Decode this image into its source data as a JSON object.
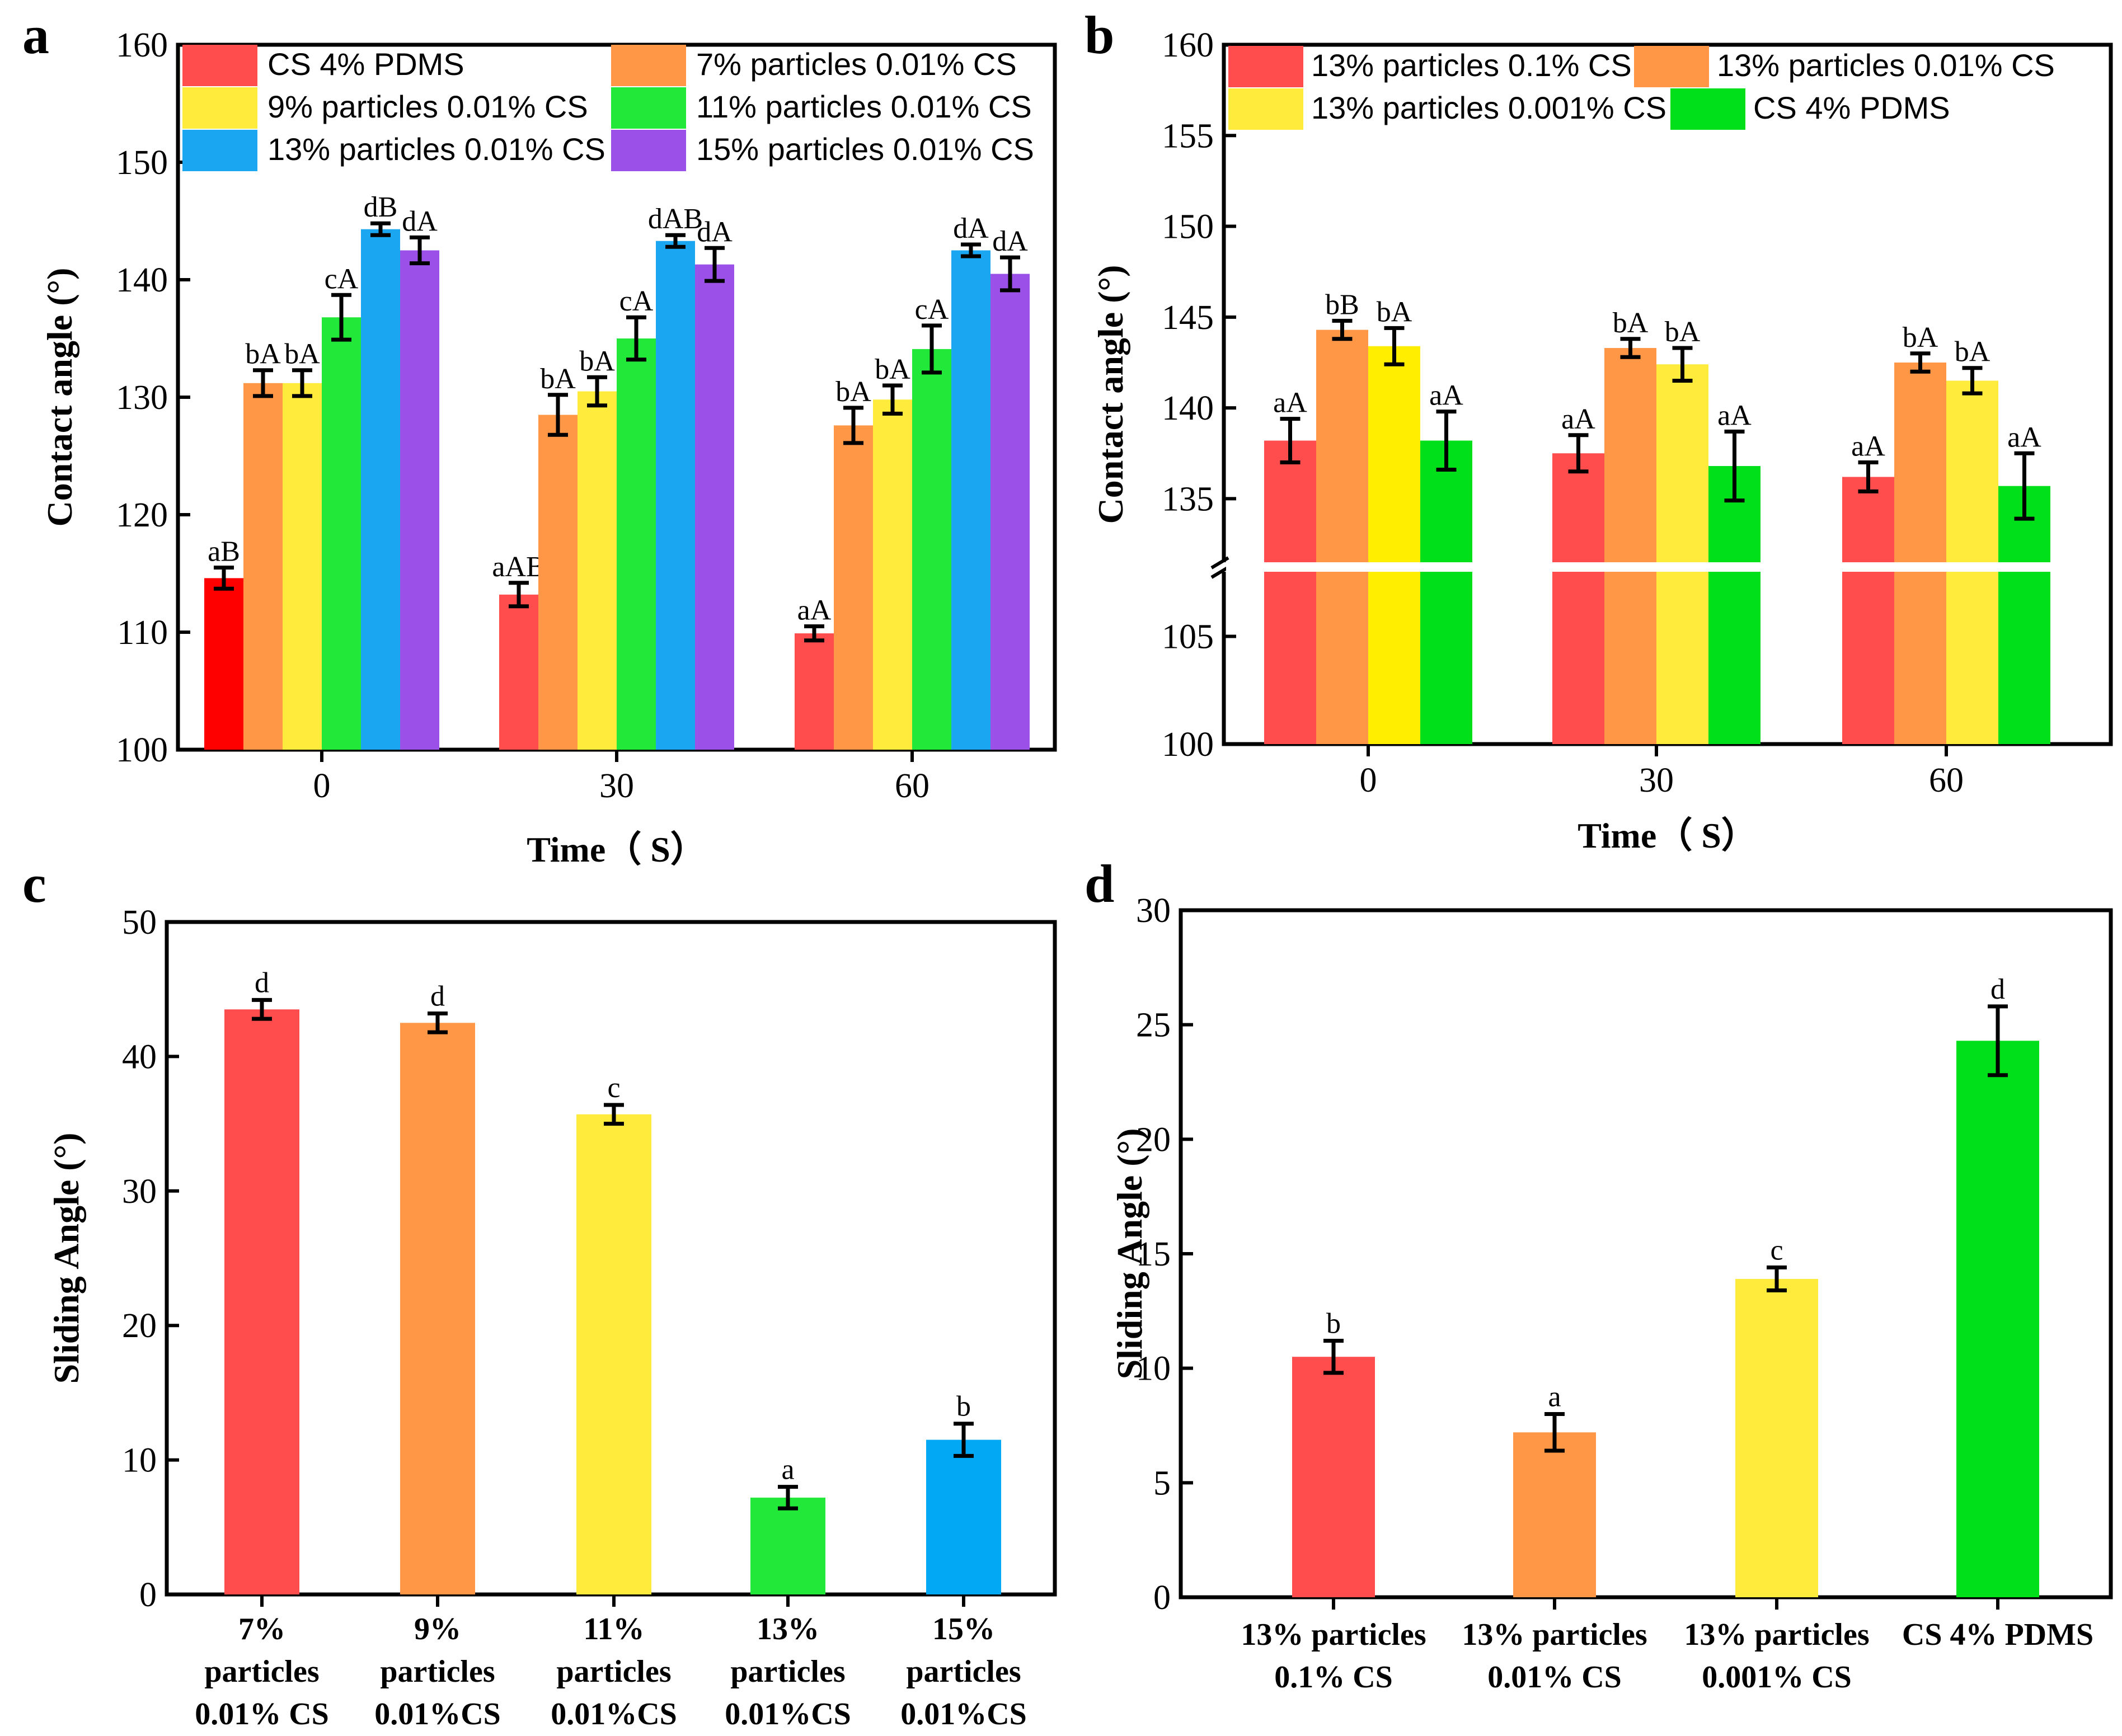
{
  "chart_data": [
    {
      "panel": "a",
      "type": "bar",
      "categories": [
        "0",
        "30",
        "60"
      ],
      "xlabel": "Time（ S）",
      "ylabel": "Contact angle (°)",
      "ylim": [
        100,
        160
      ],
      "yticks": [
        "100",
        "110",
        "120",
        "130",
        "140",
        "150",
        "160"
      ],
      "legend_position": "top",
      "series": [
        {
          "name": "CS 4% PDMS",
          "color": "#FF4D4D",
          "values": [
            114.6,
            113.2,
            109.9
          ],
          "errors": [
            0.9,
            1.0,
            0.6
          ],
          "labels": [
            "aB",
            "aAB",
            "aA"
          ]
        },
        {
          "name": "7% particles 0.01% CS",
          "color": "#FF9747",
          "values": [
            131.2,
            128.5,
            127.6
          ],
          "errors": [
            1.1,
            1.7,
            1.5
          ],
          "labels": [
            "bA",
            "bA",
            "bA"
          ]
        },
        {
          "name": "9% particles 0.01% CS",
          "color": "#FFEB3B",
          "values": [
            131.2,
            130.5,
            129.8
          ],
          "errors": [
            1.1,
            1.2,
            1.2
          ],
          "labels": [
            "bA",
            "bA",
            "bA"
          ]
        },
        {
          "name": "11% particles 0.01% CS",
          "color": "#22E83A",
          "values": [
            136.8,
            135.0,
            134.1
          ],
          "errors": [
            1.9,
            1.8,
            2.0
          ],
          "labels": [
            "cA",
            "cA",
            "cA"
          ]
        },
        {
          "name": "13% particles 0.01% CS",
          "color": "#1AA6F0",
          "values": [
            144.3,
            143.3,
            142.5
          ],
          "errors": [
            0.5,
            0.5,
            0.5
          ],
          "labels": [
            "dB",
            "dAB",
            "dA"
          ]
        },
        {
          "name": "15% particles 0.01% CS",
          "color": "#9B51E8",
          "values": [
            142.5,
            141.3,
            140.5
          ],
          "errors": [
            1.1,
            1.4,
            1.4
          ],
          "labels": [
            "dA",
            "dA",
            "dA"
          ]
        }
      ]
    },
    {
      "panel": "b",
      "type": "bar",
      "categories": [
        "0",
        "30",
        "60"
      ],
      "xlabel": "Time（ S）",
      "ylabel": "Contact angle (°)",
      "ylim": [
        100,
        160
      ],
      "axis_break": [
        108,
        131.5
      ],
      "yticks_lower": [
        "100",
        "105"
      ],
      "yticks_upper": [
        "135",
        "140",
        "145",
        "150",
        "155",
        "160"
      ],
      "legend_position": "top",
      "series": [
        {
          "name": "13% particles 0.1% CS",
          "color": "#FF4D4D",
          "values": [
            138.2,
            137.5,
            136.2
          ],
          "errors": [
            1.2,
            1.0,
            0.8
          ],
          "labels": [
            "aA",
            "aA",
            "aA"
          ]
        },
        {
          "name": "13% particles 0.01% CS",
          "color": "#FF9747",
          "values": [
            144.3,
            143.3,
            142.5
          ],
          "errors": [
            0.5,
            0.5,
            0.5
          ],
          "labels": [
            "bB",
            "bA",
            "bA"
          ]
        },
        {
          "name": "13% particles 0.001% CS",
          "color": "#FFEB3B",
          "values": [
            143.4,
            142.4,
            141.5
          ],
          "errors": [
            1.0,
            0.9,
            0.7
          ],
          "labels": [
            "bA",
            "bA",
            "bA"
          ]
        },
        {
          "name": "CS 4% PDMS",
          "color": "#00E01A",
          "values": [
            138.2,
            136.8,
            135.7
          ],
          "errors": [
            1.6,
            1.9,
            1.8
          ],
          "labels": [
            "aA",
            "aA",
            "aA"
          ]
        }
      ]
    },
    {
      "panel": "c",
      "type": "bar",
      "categories": [
        [
          "7%",
          "particles",
          "0.01% CS"
        ],
        [
          "9%",
          "particles",
          "0.01%CS"
        ],
        [
          "11%",
          "particles",
          "0.01%CS"
        ],
        [
          "13%",
          "particles",
          "0.01%CS"
        ],
        [
          "15%",
          "particles",
          "0.01%CS"
        ]
      ],
      "colors": [
        "#FF4D4D",
        "#FF9747",
        "#FFEB3B",
        "#22E83A",
        "#02A8F4"
      ],
      "values": [
        43.5,
        42.5,
        35.7,
        7.2,
        11.5
      ],
      "errors": [
        0.7,
        0.7,
        0.7,
        0.8,
        1.2
      ],
      "labels": [
        "d",
        "d",
        "c",
        "a",
        "b"
      ],
      "xlabel": "",
      "ylabel": "Sliding Angle (°)",
      "ylim": [
        0,
        50
      ],
      "yticks": [
        "0",
        "10",
        "20",
        "30",
        "40",
        "50"
      ]
    },
    {
      "panel": "d",
      "type": "bar",
      "categories": [
        [
          "13% particles",
          "0.1% CS"
        ],
        [
          "13% particles",
          "0.01% CS"
        ],
        [
          "13% particles",
          "0.001% CS"
        ],
        [
          "CS 4% PDMS"
        ]
      ],
      "colors": [
        "#FF4D4D",
        "#FF9747",
        "#FFEB3B",
        "#00E01A"
      ],
      "values": [
        10.5,
        7.2,
        13.9,
        24.3
      ],
      "errors": [
        0.7,
        0.8,
        0.5,
        1.5
      ],
      "labels": [
        "b",
        "a",
        "c",
        "d"
      ],
      "xlabel": "",
      "ylabel": "Sliding Angle (°)",
      "ylim": [
        0,
        30
      ],
      "yticks": [
        "0",
        "5",
        "10",
        "15",
        "20",
        "25",
        "30"
      ]
    }
  ],
  "panel_labels": [
    "a",
    "b",
    "c",
    "d"
  ]
}
